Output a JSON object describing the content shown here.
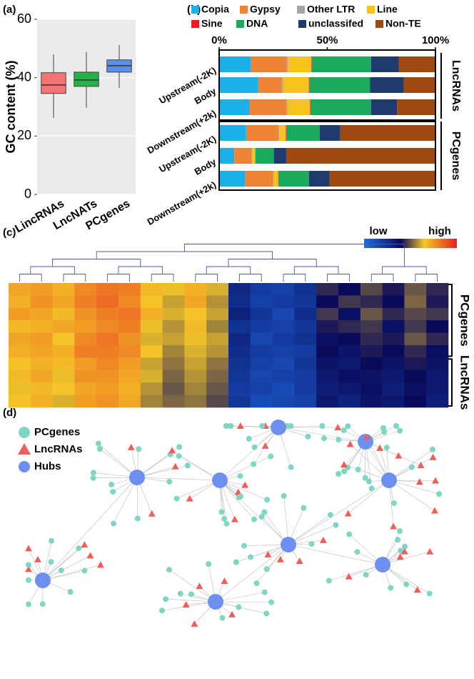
{
  "chart_data": [
    {
      "type": "box",
      "panel_label": "(a)",
      "y_label": "GC content (%)",
      "categories": [
        "LincRNAs",
        "LncNATs",
        "PCgenes"
      ],
      "colors": [
        "#f27474",
        "#23b24b",
        "#5c8fe8"
      ],
      "boxes": [
        {
          "min": 26.2,
          "q1": 34.6,
          "median": 37.5,
          "q3": 41.7,
          "max": 48
        },
        {
          "min": 29.7,
          "q1": 37,
          "median": 39.2,
          "q3": 41.9,
          "max": 48.8
        },
        {
          "min": 36.5,
          "q1": 41.9,
          "median": 44.1,
          "q3": 46.1,
          "max": 51.2
        }
      ],
      "ylim": [
        0,
        60
      ],
      "yticks": [
        0,
        20,
        40,
        60
      ],
      "grid": true
    },
    {
      "type": "stacked_hbar",
      "panel_label": "(b)",
      "categories": [
        "Upstream(-2K)",
        "Body",
        "Downstream(+2k)",
        "Upstream(-2K)",
        "Body",
        "Downstream(+2k)"
      ],
      "category_groups": [
        "LncRNAs",
        "LncRNAs",
        "LncRNAs",
        "PCgenes",
        "PCgenes",
        "PCgenes"
      ],
      "series": [
        {
          "name": "Copia",
          "color": "#1ab0e8",
          "values": [
            14.8,
            18,
            14,
            12.5,
            7,
            12
          ]
        },
        {
          "name": "Gypsy",
          "color": "#f08436",
          "values": [
            16.5,
            11,
            17,
            15,
            8,
            13
          ]
        },
        {
          "name": "Other LTR",
          "color": "#a6a6a6",
          "values": [
            0.4,
            0.5,
            0.5,
            0.3,
            0.2,
            0.3
          ]
        },
        {
          "name": "Line",
          "color": "#f8c21c",
          "values": [
            10.9,
            12,
            10.5,
            3,
            1.5,
            2
          ]
        },
        {
          "name": "Sine",
          "color": "#ee1c25",
          "values": [
            0.2,
            0.3,
            0.2,
            0.2,
            0.1,
            0.2
          ]
        },
        {
          "name": "DNA",
          "color": "#1aaa5b",
          "values": [
            27.4,
            28,
            28,
            15.5,
            8.5,
            14
          ]
        },
        {
          "name": "unclassifed",
          "color": "#1e3a6e",
          "values": [
            12.8,
            15.5,
            12,
            9.5,
            5.7,
            9.5
          ]
        },
        {
          "name": "Non-TE",
          "color": "#9e4a10",
          "values": [
            17,
            14.7,
            17.8,
            44,
            69,
            49
          ]
        }
      ],
      "xlim": [
        0,
        100
      ],
      "xticks": [
        {
          "value": 0,
          "label": "0%"
        },
        {
          "value": 50,
          "label": "50%"
        },
        {
          "value": 100,
          "label": "100%"
        }
      ]
    },
    {
      "type": "heatmap",
      "panel_label": "(c)",
      "colorbar_labels": [
        "low",
        "high"
      ],
      "row_groups": [
        "PCgenes",
        "PCgenes",
        "PCgenes",
        "PCgenes",
        "PCgenes",
        "PCgenes",
        "LncRNAs",
        "LncRNAs",
        "LncRNAs",
        "LncRNAs"
      ],
      "z": [
        [
          0.72,
          0.74,
          0.7,
          0.78,
          0.82,
          0.8,
          0.68,
          0.64,
          0.7,
          0.62,
          0.28,
          0.2,
          0.18,
          0.24,
          0.44,
          0.4,
          0.48,
          0.42,
          0.5,
          0.44
        ],
        [
          0.7,
          0.76,
          0.72,
          0.8,
          0.84,
          0.78,
          0.66,
          0.6,
          0.72,
          0.58,
          0.26,
          0.18,
          0.2,
          0.22,
          0.4,
          0.46,
          0.44,
          0.4,
          0.52,
          0.42
        ],
        [
          0.74,
          0.72,
          0.68,
          0.76,
          0.8,
          0.82,
          0.7,
          0.62,
          0.66,
          0.6,
          0.3,
          0.22,
          0.16,
          0.26,
          0.46,
          0.38,
          0.5,
          0.44,
          0.48,
          0.46
        ],
        [
          0.68,
          0.7,
          0.72,
          0.74,
          0.78,
          0.8,
          0.64,
          0.58,
          0.68,
          0.56,
          0.24,
          0.2,
          0.18,
          0.22,
          0.42,
          0.44,
          0.46,
          0.38,
          0.46,
          0.4
        ],
        [
          0.72,
          0.74,
          0.66,
          0.78,
          0.82,
          0.76,
          0.62,
          0.6,
          0.64,
          0.6,
          0.28,
          0.16,
          0.2,
          0.24,
          0.38,
          0.4,
          0.44,
          0.42,
          0.5,
          0.44
        ],
        [
          0.7,
          0.72,
          0.7,
          0.8,
          0.8,
          0.78,
          0.66,
          0.56,
          0.62,
          0.58,
          0.26,
          0.2,
          0.18,
          0.2,
          0.4,
          0.36,
          0.42,
          0.4,
          0.44,
          0.38
        ],
        [
          0.66,
          0.7,
          0.68,
          0.74,
          0.78,
          0.74,
          0.6,
          0.54,
          0.6,
          0.54,
          0.24,
          0.18,
          0.16,
          0.22,
          0.36,
          0.34,
          0.4,
          0.36,
          0.42,
          0.36
        ],
        [
          0.68,
          0.72,
          0.64,
          0.76,
          0.76,
          0.72,
          0.62,
          0.52,
          0.58,
          0.52,
          0.22,
          0.16,
          0.18,
          0.2,
          0.34,
          0.38,
          0.36,
          0.34,
          0.4,
          0.34
        ],
        [
          0.64,
          0.68,
          0.66,
          0.72,
          0.74,
          0.7,
          0.58,
          0.5,
          0.56,
          0.5,
          0.2,
          0.18,
          0.14,
          0.2,
          0.32,
          0.34,
          0.38,
          0.32,
          0.38,
          0.34
        ],
        [
          0.66,
          0.7,
          0.62,
          0.74,
          0.76,
          0.72,
          0.56,
          0.52,
          0.54,
          0.48,
          0.22,
          0.14,
          0.16,
          0.18,
          0.34,
          0.3,
          0.36,
          0.34,
          0.4,
          0.32
        ]
      ]
    },
    {
      "type": "network",
      "panel_label": "(d)",
      "node_types": [
        {
          "name": "PCgenes",
          "color": "#7fd6c2"
        },
        {
          "name": "LncRNAs",
          "color": "#ef5f5a"
        },
        {
          "name": "Hubs",
          "color": "#6d8ff0"
        }
      ]
    }
  ]
}
